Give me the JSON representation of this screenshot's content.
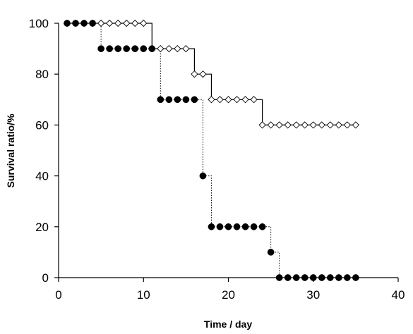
{
  "chart_data": {
    "type": "line",
    "xlabel": "Time / day",
    "ylabel": "Survival ratio/%",
    "xlim": [
      0,
      40
    ],
    "ylim": [
      0,
      100
    ],
    "x_ticks": [
      0,
      10,
      20,
      30,
      40
    ],
    "y_ticks": [
      0,
      20,
      40,
      60,
      80,
      100
    ],
    "grid": false,
    "legend": "none",
    "series": [
      {
        "marker": "open-diamond",
        "line_style": "solid",
        "color": "#000000",
        "x": [
          1,
          2,
          3,
          4,
          5,
          6,
          7,
          8,
          9,
          10,
          11,
          12,
          13,
          14,
          15,
          16,
          17,
          18,
          19,
          20,
          21,
          22,
          23,
          24,
          25,
          26,
          27,
          28,
          29,
          30,
          31,
          32,
          33,
          34,
          35
        ],
        "y": [
          100,
          100,
          100,
          100,
          100,
          100,
          100,
          100,
          100,
          100,
          90,
          90,
          90,
          90,
          90,
          80,
          80,
          70,
          70,
          70,
          70,
          70,
          70,
          60,
          60,
          60,
          60,
          60,
          60,
          60,
          60,
          60,
          60,
          60,
          60
        ]
      },
      {
        "marker": "filled-circle",
        "line_style": "dotted",
        "color": "#000000",
        "x": [
          1,
          2,
          3,
          4,
          5,
          6,
          7,
          8,
          9,
          10,
          11,
          12,
          13,
          14,
          15,
          16,
          17,
          18,
          19,
          20,
          21,
          22,
          23,
          24,
          25,
          26,
          27,
          28,
          29,
          30,
          31,
          32,
          33,
          34,
          35
        ],
        "y": [
          100,
          100,
          100,
          100,
          90,
          90,
          90,
          90,
          90,
          90,
          90,
          70,
          70,
          70,
          70,
          70,
          40,
          20,
          20,
          20,
          20,
          20,
          20,
          20,
          10,
          0,
          0,
          0,
          0,
          0,
          0,
          0,
          0,
          0,
          0
        ]
      }
    ]
  }
}
